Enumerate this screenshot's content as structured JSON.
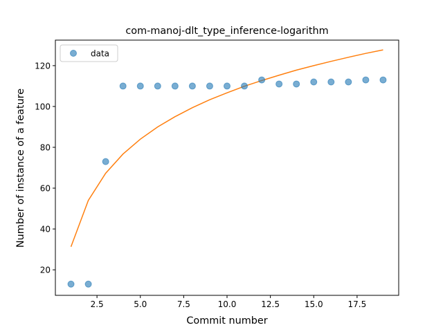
{
  "chart_data": {
    "type": "scatter",
    "title": "com-manoj-dlt_type_inference-logarithm",
    "xlabel": "Commit number",
    "ylabel": "Number of instance of a feature",
    "xlim": [
      0.1,
      19.9
    ],
    "ylim": [
      7.5,
      132.5
    ],
    "xticks": [
      2.5,
      5.0,
      7.5,
      10.0,
      12.5,
      15.0,
      17.5
    ],
    "xtick_labels": [
      "2.5",
      "5.0",
      "7.5",
      "10.0",
      "12.5",
      "15.0",
      "17.5"
    ],
    "yticks": [
      20,
      40,
      60,
      80,
      100,
      120
    ],
    "ytick_labels": [
      "20",
      "40",
      "60",
      "80",
      "100",
      "120"
    ],
    "grid": false,
    "legend": {
      "position": "top-left",
      "entries": [
        "data"
      ]
    },
    "series": [
      {
        "name": "data",
        "kind": "scatter",
        "color": "#1f77b4",
        "x": [
          1,
          2,
          3,
          4,
          5,
          6,
          7,
          8,
          9,
          10,
          11,
          12,
          13,
          14,
          15,
          16,
          17,
          18,
          19
        ],
        "y": [
          13,
          13,
          73,
          110,
          110,
          110,
          110,
          110,
          110,
          110,
          110,
          113,
          111,
          111,
          112,
          112,
          112,
          113,
          113
        ]
      },
      {
        "kind": "line",
        "color": "#ff7f0e",
        "x": [
          1,
          2,
          3,
          4,
          5,
          6,
          7,
          8,
          9,
          10,
          11,
          12,
          13,
          14,
          15,
          16,
          17,
          18,
          19
        ],
        "y": [
          31.3,
          54.0,
          67.3,
          76.7,
          84.0,
          90.0,
          95.0,
          99.4,
          103.3,
          106.7,
          109.9,
          112.7,
          115.3,
          117.8,
          120.0,
          122.1,
          124.1,
          126.0,
          127.7
        ]
      }
    ]
  }
}
